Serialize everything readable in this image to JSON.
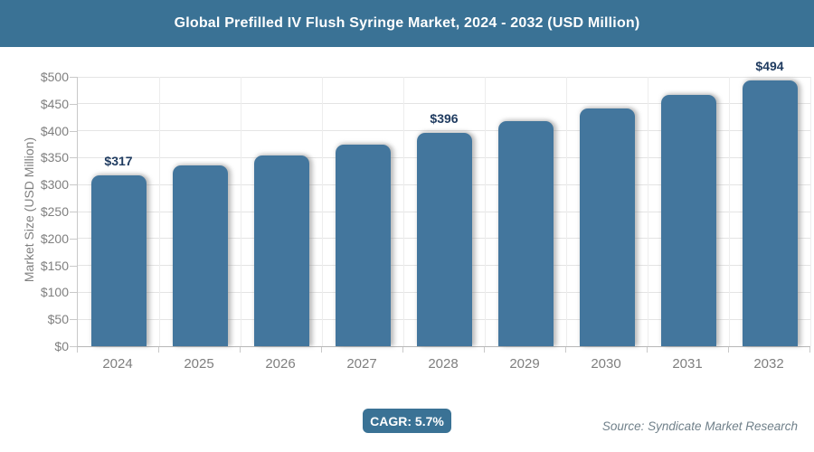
{
  "header": {
    "title": "Global Prefilled IV Flush Syringe Market, 2024 - 2032 (USD Million)"
  },
  "chart_data": {
    "type": "bar",
    "title": "Global Prefilled IV Flush Syringe Market, 2024 - 2032 (USD Million)",
    "categories": [
      "2024",
      "2025",
      "2026",
      "2027",
      "2028",
      "2029",
      "2030",
      "2031",
      "2032"
    ],
    "values": [
      317,
      335,
      354,
      374,
      396,
      418,
      442,
      467,
      494
    ],
    "data_labels": [
      "$317",
      null,
      null,
      null,
      "$396",
      null,
      null,
      null,
      "$494"
    ],
    "xlabel": "",
    "ylabel": "Market Size (USD Million)",
    "ylim": [
      0,
      500
    ],
    "y_tick_step": 50,
    "y_tick_labels": [
      "$0",
      "$50",
      "$100",
      "$150",
      "$200",
      "$250",
      "$300",
      "$350",
      "$400",
      "$450",
      "$500"
    ],
    "grid": true,
    "legend": false
  },
  "footer": {
    "cagr_label": "CAGR: 5.7%",
    "source": "Source: Syndicate Market Research"
  },
  "colors": {
    "header_bg": "#3a7295",
    "bar_fill": "#43769d",
    "data_label": "#1e3a5f",
    "axis_text": "#7f7f7f",
    "gridline": "#e4e4e4",
    "badge_bg": "#3a7295",
    "source_text": "#70808a"
  }
}
